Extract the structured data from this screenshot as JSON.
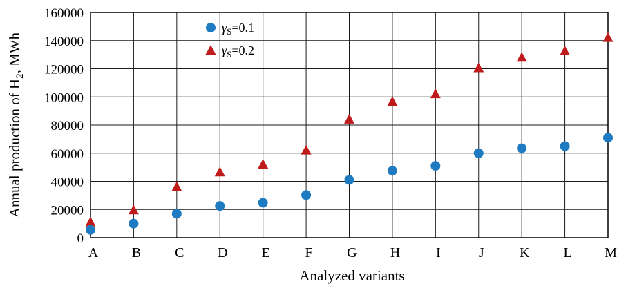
{
  "chart_data": {
    "type": "scatter",
    "categories": [
      "A",
      "B",
      "C",
      "D",
      "E",
      "F",
      "G",
      "H",
      "I",
      "J",
      "K",
      "L",
      "M"
    ],
    "series": [
      {
        "name_prefix": "γ",
        "name_sub": "S",
        "name_suffix": "=0.1",
        "marker": "circle",
        "color": "#1f7bc1",
        "values": [
          5500,
          10000,
          17000,
          22500,
          24800,
          30300,
          41000,
          47500,
          51000,
          60000,
          63500,
          65000,
          71000
        ]
      },
      {
        "name_prefix": "γ",
        "name_sub": "S",
        "name_suffix": "=0.2",
        "marker": "triangle",
        "color": "#c01b1b",
        "values": [
          11000,
          19500,
          36000,
          46500,
          52000,
          62000,
          84000,
          96500,
          102000,
          120500,
          128000,
          132500,
          142000
        ]
      }
    ],
    "ylim": [
      0,
      160000
    ],
    "yticks": [
      "0",
      "20000",
      "40000",
      "60000",
      "80000",
      "100000",
      "120000",
      "140000",
      "160000"
    ],
    "xlabel": "Analyzed variants",
    "ylabel_main": "Annual production of H",
    "ylabel_sub": "2",
    "ylabel_unit": ", MWh",
    "grid": true,
    "legend_position": "top-left"
  }
}
